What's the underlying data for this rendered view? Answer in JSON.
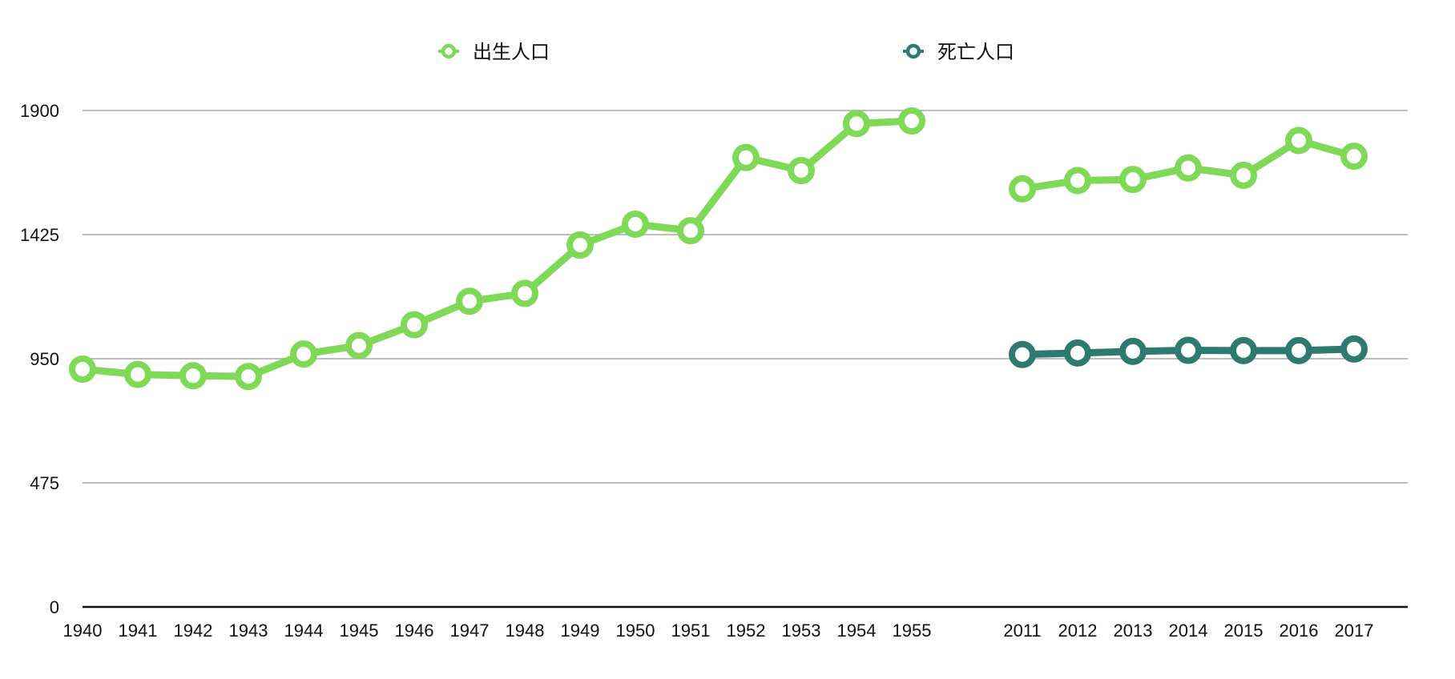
{
  "chart_data": {
    "type": "line",
    "title": "",
    "xlabel": "",
    "ylabel": "",
    "ylim": [
      0,
      1900
    ],
    "y_ticks": [
      "0",
      "475",
      "950",
      "1425",
      "1900"
    ],
    "grid": true,
    "legend_position": "top-center",
    "categories": [
      "1940",
      "1941",
      "1942",
      "1943",
      "1944",
      "1945",
      "1946",
      "1947",
      "1948",
      "1949",
      "1950",
      "1951",
      "1952",
      "1953",
      "1954",
      "1955",
      "",
      "2011",
      "2012",
      "2013",
      "2014",
      "2015",
      "2016",
      "2017"
    ],
    "series": [
      {
        "name": "出生人口",
        "color": "#7ed957",
        "values": [
          910,
          890,
          885,
          882,
          968,
          1000,
          1080,
          1170,
          1200,
          1385,
          1465,
          1440,
          1720,
          1670,
          1850,
          1860,
          null,
          1600,
          1632,
          1636,
          1680,
          1652,
          1785,
          1725
        ]
      },
      {
        "name": "死亡人口",
        "color": "#2f7a6e",
        "values": [
          null,
          null,
          null,
          null,
          null,
          null,
          null,
          null,
          null,
          null,
          null,
          null,
          null,
          null,
          null,
          null,
          null,
          966,
          972,
          978,
          982,
          981,
          981,
          987
        ]
      }
    ]
  }
}
